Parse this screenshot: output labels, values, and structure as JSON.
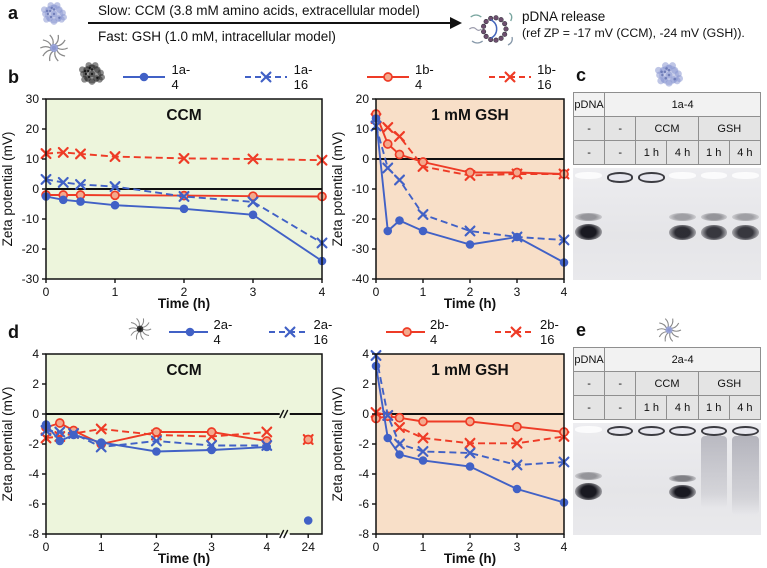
{
  "panel_a": {
    "label": "a",
    "slow_text": "Slow: CCM (3.8 mM amino acids, extracellular model)",
    "fast_text": "Fast: GSH (1.0 mM, intracellular model)",
    "release_title": "pDNA release",
    "release_ref": "(ref ZP = -17 mV (CCM), -24 mV (GSH)).",
    "icons": [
      "polymer-coil-particle",
      "micelle-star-particle",
      "released-pdna-ring"
    ]
  },
  "panel_b": {
    "label": "b",
    "icon": "black-polymer-particle",
    "legend": [
      {
        "name": "1a-4",
        "color": "#4161c6",
        "line": "solid",
        "marker": "filled-circle"
      },
      {
        "name": "1a-16",
        "color": "#4161c6",
        "line": "dashed",
        "marker": "x"
      },
      {
        "name": "1b-4",
        "color": "#ee3b26",
        "line": "solid",
        "marker": "open-circle"
      },
      {
        "name": "1b-16",
        "color": "#ee3b26",
        "line": "dashed",
        "marker": "x"
      }
    ]
  },
  "panel_d": {
    "label": "d",
    "icon": "black-micelle-particle",
    "legend": [
      {
        "name": "2a-4",
        "color": "#4161c6",
        "line": "solid",
        "marker": "filled-circle"
      },
      {
        "name": "2a-16",
        "color": "#4161c6",
        "line": "dashed",
        "marker": "x"
      },
      {
        "name": "2b-4",
        "color": "#ee3b26",
        "line": "solid",
        "marker": "open-circle"
      },
      {
        "name": "2b-16",
        "color": "#ee3b26",
        "line": "dashed",
        "marker": "x"
      }
    ]
  },
  "panel_c": {
    "label": "c",
    "icon": "blue-polymer-particle",
    "table": {
      "rows": [
        {
          "cells": [
            {
              "text": "pDNA"
            },
            {
              "text": "1a-4",
              "span": 5
            }
          ]
        },
        {
          "cells": [
            {
              "text": "-"
            },
            {
              "text": "-"
            },
            {
              "text": "CCM",
              "span": 2
            },
            {
              "text": "GSH",
              "span": 2
            }
          ]
        },
        {
          "cells": [
            {
              "text": "-"
            },
            {
              "text": "-"
            },
            {
              "text": "1 h"
            },
            {
              "text": "4 h"
            },
            {
              "text": "1 h"
            },
            {
              "text": "4 h"
            }
          ]
        }
      ]
    },
    "lanes": [
      {
        "bands": [
          {
            "type": "faint",
            "t": 0.04,
            "h": 0.06
          },
          {
            "type": "band",
            "t": 0.4,
            "h": 0.07,
            "a": 0.4
          },
          {
            "type": "band",
            "t": 0.5,
            "h": 0.14,
            "a": 1
          }
        ]
      },
      {
        "bands": [
          {
            "type": "well",
            "t": 0.04
          }
        ]
      },
      {
        "bands": [
          {
            "type": "well",
            "t": 0.04
          }
        ]
      },
      {
        "bands": [
          {
            "type": "faint",
            "t": 0.04,
            "h": 0.06
          },
          {
            "type": "band",
            "t": 0.4,
            "h": 0.07,
            "a": 0.35
          },
          {
            "type": "band",
            "t": 0.51,
            "h": 0.13,
            "a": 0.9
          }
        ]
      },
      {
        "bands": [
          {
            "type": "faint",
            "t": 0.04,
            "h": 0.06
          },
          {
            "type": "band",
            "t": 0.4,
            "h": 0.07,
            "a": 0.4
          },
          {
            "type": "band",
            "t": 0.51,
            "h": 0.13,
            "a": 0.85
          }
        ]
      },
      {
        "bands": [
          {
            "type": "faint",
            "t": 0.04,
            "h": 0.06
          },
          {
            "type": "band",
            "t": 0.4,
            "h": 0.07,
            "a": 0.35
          },
          {
            "type": "band",
            "t": 0.51,
            "h": 0.13,
            "a": 0.85
          }
        ]
      }
    ]
  },
  "panel_e": {
    "label": "e",
    "icon": "blue-micelle-particle",
    "table": {
      "rows": [
        {
          "cells": [
            {
              "text": "pDNA"
            },
            {
              "text": "2a-4",
              "span": 5
            }
          ]
        },
        {
          "cells": [
            {
              "text": "-"
            },
            {
              "text": "-"
            },
            {
              "text": "CCM",
              "span": 2
            },
            {
              "text": "GSH",
              "span": 2
            }
          ]
        },
        {
          "cells": [
            {
              "text": "-"
            },
            {
              "text": "-"
            },
            {
              "text": "1 h"
            },
            {
              "text": "4 h"
            },
            {
              "text": "1 h"
            },
            {
              "text": "4 h"
            }
          ]
        }
      ]
    },
    "lanes": [
      {
        "bands": [
          {
            "type": "faint",
            "t": 0.03,
            "h": 0.06
          },
          {
            "type": "band",
            "t": 0.44,
            "h": 0.07,
            "a": 0.4
          },
          {
            "type": "band",
            "t": 0.54,
            "h": 0.15,
            "a": 1
          }
        ]
      },
      {
        "bands": [
          {
            "type": "well",
            "t": 0.03
          }
        ]
      },
      {
        "bands": [
          {
            "type": "well",
            "t": 0.03
          }
        ]
      },
      {
        "bands": [
          {
            "type": "well",
            "t": 0.03
          },
          {
            "type": "band",
            "t": 0.46,
            "h": 0.07,
            "a": 0.5
          },
          {
            "type": "band",
            "t": 0.55,
            "h": 0.13,
            "a": 1
          }
        ]
      },
      {
        "bands": [
          {
            "type": "well",
            "t": 0.03
          },
          {
            "type": "smear",
            "t": 0.12,
            "h": 0.64,
            "a": 0.85
          }
        ]
      },
      {
        "bands": [
          {
            "type": "well",
            "t": 0.03
          },
          {
            "type": "smear",
            "t": 0.12,
            "h": 0.7,
            "a": 0.95
          }
        ]
      }
    ]
  },
  "chart_data": [
    {
      "id": "b_ccm",
      "type": "line",
      "title": "CCM",
      "xlabel": "Time (h)",
      "ylabel": "Zeta potential (mV)",
      "bg": "#edf5dc",
      "xlim": [
        0,
        4
      ],
      "ylim": [
        -30,
        30
      ],
      "yticks": [
        30,
        20,
        10,
        0,
        -10,
        -20,
        -30
      ],
      "xticks": [
        0,
        1,
        2,
        3,
        4
      ],
      "x": [
        0,
        0.25,
        0.5,
        1,
        2,
        3,
        4
      ],
      "series": [
        {
          "name": "1a-4",
          "color": "#4161c6",
          "dash": false,
          "marker": "filled-circle",
          "y": [
            -2.5,
            -3.6,
            -4.2,
            -5.4,
            -6.6,
            -8.6,
            -24
          ]
        },
        {
          "name": "1a-16",
          "color": "#4161c6",
          "dash": true,
          "marker": "x",
          "y": [
            3.2,
            2.2,
            1.5,
            0.8,
            -2.5,
            -4.3,
            -18
          ]
        },
        {
          "name": "1b-4",
          "color": "#ee3b26",
          "dash": false,
          "marker": "open-circle",
          "y": [
            -2.0,
            -2.0,
            -2.0,
            -2.1,
            -2.2,
            -2.4,
            -2.5
          ]
        },
        {
          "name": "1b-16",
          "color": "#ee3b26",
          "dash": true,
          "marker": "x",
          "y": [
            11.8,
            12.2,
            11.7,
            10.8,
            10.2,
            10.0,
            9.6
          ]
        }
      ]
    },
    {
      "id": "b_gsh",
      "type": "line",
      "title": "1 mM GSH",
      "xlabel": "Time (h)",
      "ylabel": "Zeta potential (mV)",
      "bg": "#f8dfc8",
      "xlim": [
        0,
        4
      ],
      "ylim": [
        -40,
        20
      ],
      "yticks": [
        20,
        10,
        0,
        -10,
        -20,
        -30,
        -40
      ],
      "xticks": [
        0,
        1,
        2,
        3,
        4
      ],
      "x": [
        0,
        0.25,
        0.5,
        1,
        2,
        3,
        4
      ],
      "series": [
        {
          "name": "1a-4",
          "color": "#4161c6",
          "dash": false,
          "marker": "filled-circle",
          "y": [
            13.5,
            -24,
            -20.5,
            -24,
            -28.5,
            -26,
            -34.5
          ]
        },
        {
          "name": "1a-16",
          "color": "#4161c6",
          "dash": true,
          "marker": "x",
          "y": [
            11,
            -3,
            -7,
            -18.5,
            -24,
            -26,
            -27
          ]
        },
        {
          "name": "1b-4",
          "color": "#ee3b26",
          "dash": false,
          "marker": "open-circle",
          "y": [
            15,
            5,
            1.5,
            -1,
            -4.5,
            -4.5,
            -5
          ]
        },
        {
          "name": "1b-16",
          "color": "#ee3b26",
          "dash": true,
          "marker": "x",
          "y": [
            13.5,
            10.5,
            7.5,
            -2.5,
            -5.5,
            -5,
            -5
          ]
        }
      ]
    },
    {
      "id": "d_ccm",
      "type": "line",
      "title": "CCM",
      "xlabel": "Time (h)",
      "ylabel": "Zeta potential (mV)",
      "bg": "#edf5dc",
      "xlim": [
        0,
        24
      ],
      "ylim": [
        -8,
        4
      ],
      "yticks": [
        4,
        2,
        0,
        -2,
        -4,
        -6,
        -8
      ],
      "xticks": [
        0,
        1,
        2,
        3,
        4,
        24
      ],
      "x_break": {
        "break_after": 4,
        "frac_regular": 0.8,
        "frac_break": 0.865,
        "frac_outlier": 0.95
      },
      "x": [
        0,
        0.25,
        0.5,
        1,
        2,
        3,
        4,
        24
      ],
      "series": [
        {
          "name": "2a-4",
          "color": "#4161c6",
          "dash": false,
          "marker": "filled-circle",
          "y": [
            -0.7,
            -1.8,
            -1.4,
            -1.9,
            -2.5,
            -2.4,
            -2.2,
            -7.1
          ]
        },
        {
          "name": "2a-16",
          "color": "#4161c6",
          "dash": true,
          "marker": "x",
          "y": [
            -1.1,
            -1.2,
            -1.3,
            -2.2,
            -1.8,
            -2.1,
            -2.1,
            null
          ]
        },
        {
          "name": "2b-4",
          "color": "#ee3b26",
          "dash": false,
          "marker": "open-circle",
          "y": [
            -0.9,
            -0.6,
            -1.1,
            -2.0,
            -1.2,
            -1.2,
            -1.8,
            -1.7
          ]
        },
        {
          "name": "2b-16",
          "color": "#ee3b26",
          "dash": true,
          "marker": "x",
          "y": [
            -1.6,
            -1.5,
            -1.3,
            -1.0,
            -1.4,
            -1.5,
            -1.2,
            -1.7
          ]
        }
      ]
    },
    {
      "id": "d_gsh",
      "type": "line",
      "title": "1 mM GSH",
      "xlabel": "Time (h)",
      "ylabel": "Zeta potential (mV)",
      "bg": "#f8dfc8",
      "xlim": [
        0,
        4
      ],
      "ylim": [
        -8,
        4
      ],
      "yticks": [
        4,
        2,
        0,
        -2,
        -4,
        -6,
        -8
      ],
      "xticks": [
        0,
        1,
        2,
        3,
        4
      ],
      "x": [
        0,
        0.25,
        0.5,
        1,
        2,
        3,
        4
      ],
      "series": [
        {
          "name": "2a-4",
          "color": "#4161c6",
          "dash": false,
          "marker": "filled-circle",
          "y": [
            3.2,
            -1.6,
            -2.7,
            -3.1,
            -3.5,
            -5.0,
            -5.9
          ]
        },
        {
          "name": "2a-16",
          "color": "#4161c6",
          "dash": true,
          "marker": "x",
          "y": [
            3.9,
            -0.1,
            -2.0,
            -2.5,
            -2.6,
            -3.4,
            -3.2
          ]
        },
        {
          "name": "2b-4",
          "color": "#ee3b26",
          "dash": false,
          "marker": "open-circle",
          "y": [
            -0.3,
            -0.15,
            -0.25,
            -0.5,
            -0.5,
            -0.85,
            -1.2
          ]
        },
        {
          "name": "2b-16",
          "color": "#ee3b26",
          "dash": true,
          "marker": "x",
          "y": [
            0.1,
            -0.1,
            -0.9,
            -1.6,
            -1.95,
            -1.95,
            -1.5
          ]
        }
      ]
    }
  ],
  "style": {
    "blue": "#4161c6",
    "red": "#ee3b26",
    "open_circle_fill": "#f3a98d",
    "ccm_bg": "#edf5dc",
    "gsh_bg": "#f8dfc8"
  }
}
